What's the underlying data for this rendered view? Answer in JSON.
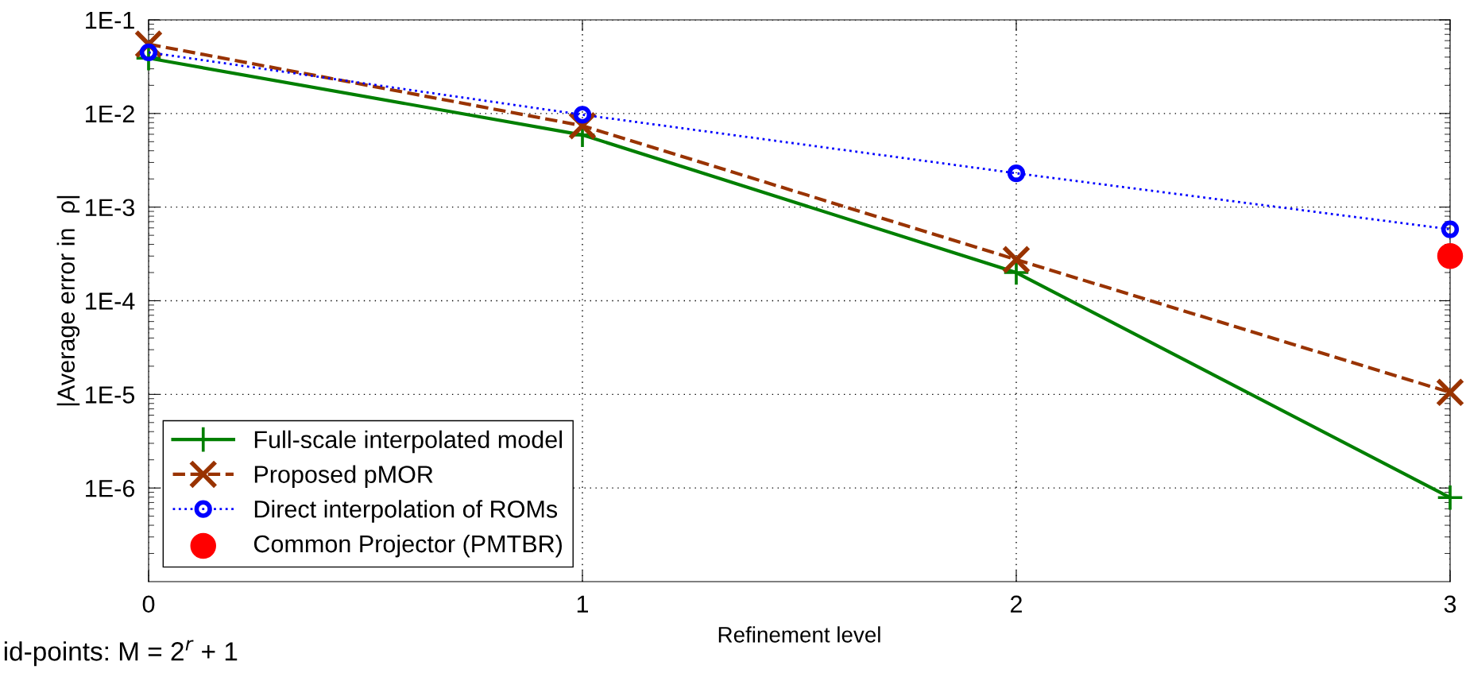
{
  "chart_data": {
    "type": "line",
    "xlabel": "Refinement level",
    "ylabel": "|Average error in  ρ|",
    "x": [
      0,
      1,
      2,
      3
    ],
    "xlim": [
      0,
      3
    ],
    "xticks": [
      0,
      1,
      2,
      3
    ],
    "log": "y",
    "ylim": [
      1e-07,
      0.1
    ],
    "yticks": [
      {
        "value": 0.1,
        "label": "1E-1"
      },
      {
        "value": 0.01,
        "label": "1E-2"
      },
      {
        "value": 0.001,
        "label": "1E-3"
      },
      {
        "value": 0.0001,
        "label": "1E-4"
      },
      {
        "value": 1e-05,
        "label": "1E-5"
      },
      {
        "value": 1e-06,
        "label": "1E-6"
      }
    ],
    "grid": true,
    "legend": "bottom left",
    "series": [
      {
        "name": "Full-scale interpolated model",
        "color": "#007f00",
        "marker": "cross",
        "line_style": "solid",
        "values": [
          0.039,
          0.0059,
          0.0002,
          7.9e-07
        ]
      },
      {
        "name": "Proposed pMOR",
        "color": "#993300",
        "marker": "x",
        "line_style": "dashed",
        "values": [
          0.055,
          0.0074,
          0.000275,
          1.05e-05
        ]
      },
      {
        "name": "Direct interpolation of ROMs",
        "color": "#0000ff",
        "marker": "circle",
        "line_style": "dotted",
        "values": [
          0.045,
          0.0097,
          0.0023,
          0.00058
        ]
      },
      {
        "name": "Common Projector (PMTBR)",
        "type": "scatter",
        "color": "#ff0000",
        "marker": "circle",
        "x": [
          3
        ],
        "values": [
          0.0003
        ]
      }
    ],
    "annotations": [
      "id-points: M = 2$^{r}$ + 1"
    ]
  }
}
